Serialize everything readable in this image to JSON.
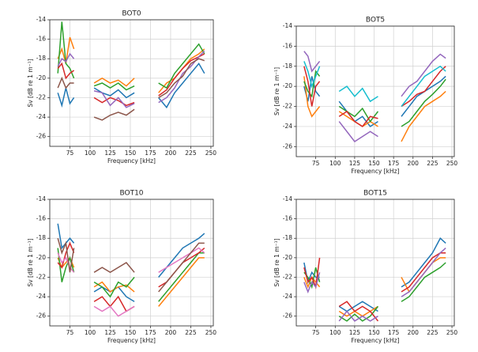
{
  "chart_data": [
    {
      "type": "line",
      "title": "BOT0",
      "xlabel": "Frequency [kHz]",
      "ylabel": "Sv [dB re 1 m⁻¹]",
      "grid": true,
      "xlim": [
        50,
        253
      ],
      "xticks": [
        75,
        100,
        125,
        150,
        175,
        200,
        225,
        250
      ],
      "ylim": [
        -27,
        -14
      ],
      "yticks": [
        -14,
        -16,
        -18,
        -20,
        -22,
        -24,
        -26
      ],
      "x": [
        60,
        65,
        70,
        75,
        80,
        null,
        105,
        115,
        125,
        135,
        145,
        155,
        null,
        185,
        195,
        205,
        215,
        225,
        235,
        242
      ],
      "series": [
        {
          "color": "#1f77b4",
          "values": [
            -21.5,
            -22.8,
            -21,
            -22.6,
            -22,
            null,
            -21,
            -21.5,
            -21.8,
            -21.2,
            -22,
            -21.5,
            null,
            -22,
            -23,
            -21.5,
            -20.5,
            -19.5,
            -18.5,
            -19.5
          ]
        },
        {
          "color": "#ff7f0e",
          "values": [
            -18,
            -17,
            -18.5,
            -15.8,
            -17,
            null,
            -20.5,
            -20,
            -20.5,
            -20.2,
            -20.8,
            -20,
            null,
            -21.5,
            -20.5,
            -20,
            -19,
            -18,
            -17.5,
            -17
          ]
        },
        {
          "color": "#2ca02c",
          "values": [
            -19.5,
            -14.2,
            -18.5,
            -19,
            -20,
            null,
            -20.8,
            -20.5,
            -21,
            -20.5,
            -21.2,
            -20.8,
            null,
            -20.5,
            -21,
            -19.5,
            -18.5,
            -17.5,
            -16.5,
            -17.5
          ]
        },
        {
          "color": "#d62728",
          "values": [
            -19,
            -18.5,
            -20,
            -19.5,
            -19.2,
            null,
            -22,
            -22.5,
            -22,
            -22.3,
            -22.8,
            -22.5,
            null,
            -21.8,
            -21.2,
            -20,
            -19,
            -18.2,
            -17.8,
            -17.5
          ]
        },
        {
          "color": "#9467bd",
          "values": [
            -18.8,
            -18,
            -18.3,
            -17.5,
            -18,
            null,
            -21.3,
            -21.5,
            -22.8,
            -22,
            -23,
            -22.6,
            null,
            -22.5,
            -22,
            -21,
            -19.5,
            -18.8,
            -17.8,
            -17.2
          ]
        },
        {
          "color": "#8c564b",
          "values": [
            -21,
            -20,
            -21,
            -20.5,
            -20.5,
            null,
            -24,
            -24.3,
            -23.8,
            -23.5,
            -23.8,
            -23.2,
            null,
            -22,
            -21.5,
            -20.5,
            -19.8,
            -18.5,
            -18,
            -18.2
          ]
        }
      ]
    },
    {
      "type": "line",
      "title": "BOT5",
      "xlabel": "Frequency [kHz]",
      "ylabel": "Sv [dB re 1 m⁻¹]",
      "grid": true,
      "xlim": [
        50,
        253
      ],
      "xticks": [
        75,
        100,
        125,
        150,
        175,
        200,
        225,
        250
      ],
      "ylim": [
        -27,
        -14
      ],
      "yticks": [
        -14,
        -16,
        -18,
        -20,
        -22,
        -24,
        -26
      ],
      "x": [
        60,
        65,
        70,
        75,
        80,
        null,
        105,
        115,
        125,
        135,
        145,
        155,
        null,
        185,
        195,
        205,
        215,
        225,
        235,
        242
      ],
      "series": [
        {
          "color": "#1f77b4",
          "values": [
            -20,
            -21.5,
            -19,
            -20.5,
            -21,
            null,
            -21.5,
            -22.5,
            -23.5,
            -23,
            -24,
            -23.5,
            null,
            -23,
            -22,
            -21,
            -20.5,
            -20,
            -19.5,
            -19
          ]
        },
        {
          "color": "#ff7f0e",
          "values": [
            -19,
            -22,
            -23,
            -22.5,
            -22,
            null,
            -22.5,
            -23,
            -23.5,
            -24,
            -23.5,
            -24,
            null,
            -25.5,
            -24,
            -23,
            -22,
            -21.5,
            -21,
            -20.5
          ]
        },
        {
          "color": "#2ca02c",
          "values": [
            -19.5,
            -20.5,
            -21,
            -18.5,
            -19,
            null,
            -22,
            -22.5,
            -23,
            -22.2,
            -23.5,
            -22.5,
            null,
            -24,
            -23.5,
            -22.5,
            -21.5,
            -20.8,
            -20,
            -19.3
          ]
        },
        {
          "color": "#d62728",
          "values": [
            -18,
            -19.5,
            -22,
            -20,
            -19.5,
            null,
            -23,
            -22.5,
            -23.5,
            -24,
            -23,
            -23.2,
            null,
            -22,
            -21.5,
            -20.8,
            -20.5,
            -19.5,
            -18.5,
            -18
          ]
        },
        {
          "color": "#9467bd",
          "values": [
            -16.5,
            -17,
            -18.5,
            -18,
            -17.5,
            null,
            -23.5,
            -24.5,
            -25.5,
            -25,
            -24.5,
            -25,
            null,
            -21,
            -20,
            -19.5,
            -18.5,
            -17.5,
            -16.8,
            -17.2
          ]
        },
        {
          "color": "#17becf",
          "values": [
            -17.5,
            -18.5,
            -20,
            -19,
            -18,
            null,
            -20.5,
            -20,
            -21,
            -20.2,
            -21.5,
            -21,
            null,
            -22,
            -21,
            -20,
            -19,
            -18.5,
            -18,
            -18.5
          ]
        }
      ]
    },
    {
      "type": "line",
      "title": "BOT10",
      "xlabel": "Frequency [kHz]",
      "ylabel": "Sv [dB re 1 m⁻¹]",
      "grid": true,
      "xlim": [
        50,
        253
      ],
      "xticks": [
        75,
        100,
        125,
        150,
        175,
        200,
        225,
        250
      ],
      "ylim": [
        -27,
        -14
      ],
      "yticks": [
        -14,
        -16,
        -18,
        -20,
        -22,
        -24,
        -26
      ],
      "x": [
        60,
        65,
        70,
        75,
        80,
        null,
        105,
        115,
        125,
        135,
        145,
        155,
        null,
        185,
        195,
        205,
        215,
        225,
        235,
        242
      ],
      "series": [
        {
          "color": "#1f77b4",
          "values": [
            -16.5,
            -19,
            -18.5,
            -18,
            -18.5,
            null,
            -23.5,
            -23,
            -23.5,
            -23,
            -24,
            -24.5,
            null,
            -22,
            -21,
            -20,
            -19,
            -18.5,
            -18,
            -17.5
          ]
        },
        {
          "color": "#ff7f0e",
          "values": [
            -20,
            -21,
            -20.5,
            -20,
            -21,
            null,
            -23,
            -22.5,
            -23.5,
            -23,
            -22.8,
            -23.5,
            null,
            -25,
            -24,
            -23,
            -22,
            -21,
            -20,
            -20
          ]
        },
        {
          "color": "#2ca02c",
          "values": [
            -19,
            -22.5,
            -21,
            -20,
            -21.5,
            null,
            -22.5,
            -23,
            -24,
            -22.5,
            -23,
            -22,
            null,
            -24.5,
            -23.5,
            -22.5,
            -21.5,
            -20.5,
            -19.5,
            -19.5
          ]
        },
        {
          "color": "#d62728",
          "values": [
            -20.5,
            -21,
            -19.5,
            -18.5,
            -19.5,
            null,
            -24.5,
            -24,
            -25,
            -24,
            -25.5,
            -25,
            null,
            -23,
            -22.5,
            -21.5,
            -20.5,
            -20,
            -19.5,
            -19
          ]
        },
        {
          "color": "#e377c2",
          "values": [
            -19.5,
            -20.5,
            -20,
            -21,
            -21.5,
            null,
            -25,
            -25.5,
            -25,
            -26,
            -25.5,
            -25,
            null,
            -21.5,
            -21,
            -20.5,
            -20,
            -19.5,
            -19,
            -19.5
          ]
        },
        {
          "color": "#8c564b",
          "values": [
            -18,
            -19.5,
            -18.5,
            -21.5,
            -19,
            null,
            -21.5,
            -21,
            -21.5,
            -21,
            -20.5,
            -21.5,
            null,
            -23.5,
            -22.5,
            -21.5,
            -20.5,
            -19.5,
            -18.5,
            -18.5
          ]
        }
      ]
    },
    {
      "type": "line",
      "title": "BOT15",
      "xlabel": "Frequency [kHz]",
      "ylabel": "Sv [dB re 1 m⁻¹]",
      "grid": true,
      "xlim": [
        50,
        253
      ],
      "xticks": [
        75,
        100,
        125,
        150,
        175,
        200,
        225,
        250
      ],
      "ylim": [
        -27,
        -14
      ],
      "yticks": [
        -14,
        -16,
        -18,
        -20,
        -22,
        -24,
        -26
      ],
      "x": [
        60,
        65,
        70,
        75,
        80,
        null,
        105,
        115,
        125,
        135,
        145,
        155,
        null,
        185,
        195,
        205,
        215,
        225,
        235,
        242
      ],
      "series": [
        {
          "color": "#1f77b4",
          "values": [
            -20.5,
            -22.5,
            -21.5,
            -22,
            -22,
            null,
            -25,
            -25.5,
            -25,
            -24.5,
            -25,
            -25.5,
            null,
            -23,
            -22.5,
            -21.5,
            -20.5,
            -19.5,
            -18,
            -18.5
          ]
        },
        {
          "color": "#ff7f0e",
          "values": [
            -22,
            -23,
            -22,
            -22.5,
            -23,
            null,
            -25.5,
            -26,
            -25.5,
            -26,
            -25.5,
            -25,
            null,
            -22,
            -23.5,
            -22.5,
            -21.5,
            -20.5,
            -20,
            -20
          ]
        },
        {
          "color": "#2ca02c",
          "values": [
            -21.5,
            -22,
            -23,
            -21,
            -22.5,
            null,
            -26,
            -26.5,
            -25.8,
            -26.5,
            -26,
            -25,
            null,
            -24.5,
            -24,
            -23,
            -22,
            -21.5,
            -21,
            -20.5
          ]
        },
        {
          "color": "#d62728",
          "values": [
            -21,
            -22.5,
            -22,
            -23,
            -20,
            null,
            -25,
            -24.5,
            -25.5,
            -25,
            -25.5,
            -26.5,
            null,
            -23.5,
            -23,
            -22,
            -21,
            -20,
            -19.5,
            -19.5
          ]
        },
        {
          "color": "#9467bd",
          "values": [
            -22.5,
            -23.5,
            -22.5,
            -23,
            -21.5,
            null,
            -26.5,
            -25.5,
            -26.5,
            -26,
            -26.5,
            -26,
            null,
            -24,
            -23.5,
            -22.5,
            -21.5,
            -20.5,
            -19.5,
            -19
          ]
        }
      ]
    }
  ]
}
